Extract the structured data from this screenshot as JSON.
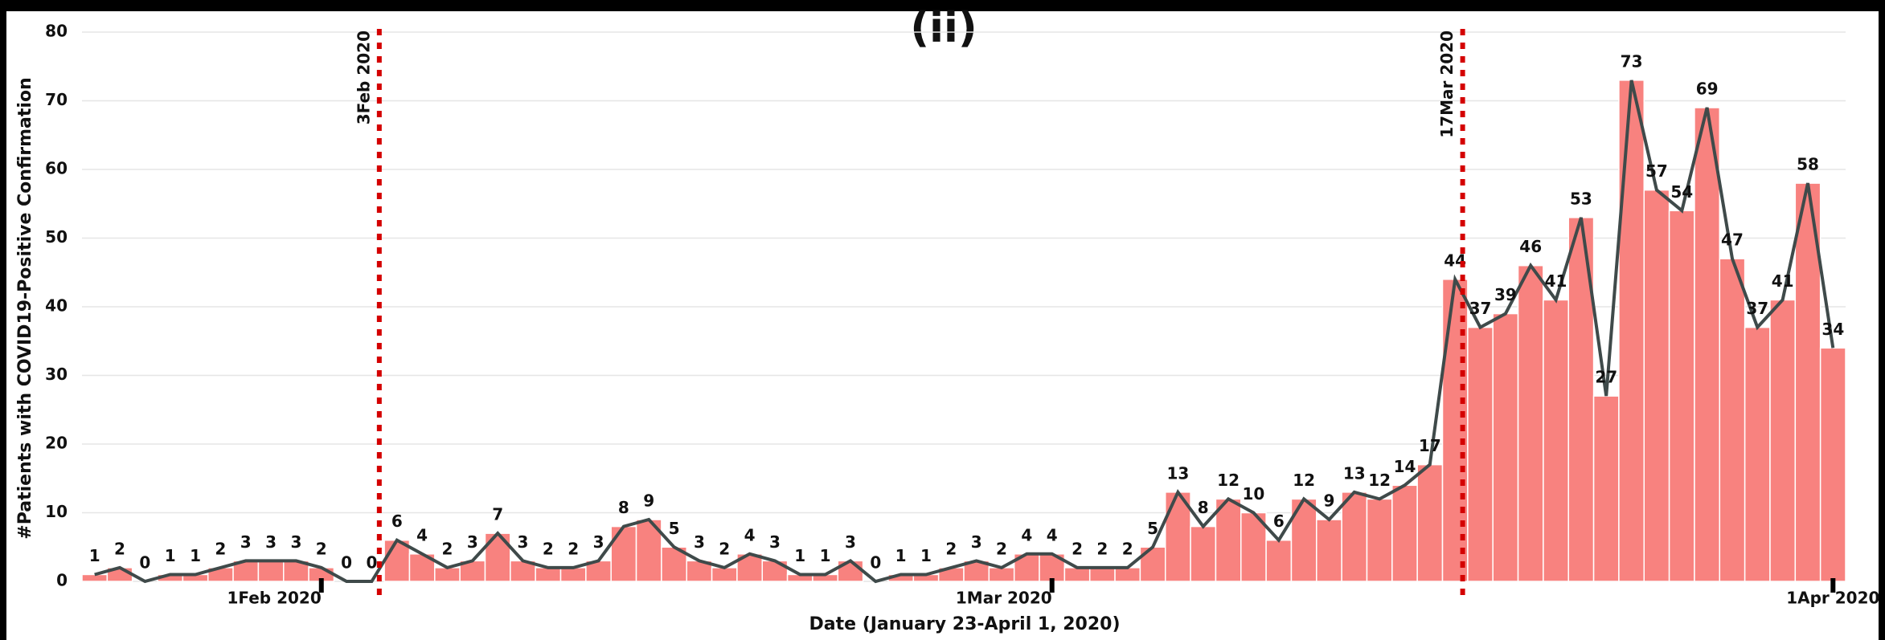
{
  "chart_data": {
    "type": "bar-line",
    "title": "(ii)",
    "x_label": "Date (January 23-April 1, 2020)",
    "y_label": "#Patients with COVID19-Positive Confirmation",
    "x": [
      "2020-01-23",
      "2020-01-24",
      "2020-01-25",
      "2020-01-26",
      "2020-01-27",
      "2020-01-28",
      "2020-01-29",
      "2020-01-30",
      "2020-01-31",
      "2020-02-01",
      "2020-02-02",
      "2020-02-03",
      "2020-02-04",
      "2020-02-05",
      "2020-02-06",
      "2020-02-07",
      "2020-02-08",
      "2020-02-09",
      "2020-02-10",
      "2020-02-11",
      "2020-02-12",
      "2020-02-13",
      "2020-02-14",
      "2020-02-15",
      "2020-02-16",
      "2020-02-17",
      "2020-02-18",
      "2020-02-19",
      "2020-02-20",
      "2020-02-21",
      "2020-02-22",
      "2020-02-23",
      "2020-02-24",
      "2020-02-25",
      "2020-02-26",
      "2020-02-27",
      "2020-02-28",
      "2020-02-29",
      "2020-03-01",
      "2020-03-02",
      "2020-03-03",
      "2020-03-04",
      "2020-03-05",
      "2020-03-06",
      "2020-03-07",
      "2020-03-08",
      "2020-03-09",
      "2020-03-10",
      "2020-03-11",
      "2020-03-12",
      "2020-03-13",
      "2020-03-14",
      "2020-03-15",
      "2020-03-16",
      "2020-03-17",
      "2020-03-18",
      "2020-03-19",
      "2020-03-20",
      "2020-03-21",
      "2020-03-22",
      "2020-03-23",
      "2020-03-24",
      "2020-03-25",
      "2020-03-26",
      "2020-03-27",
      "2020-03-28",
      "2020-03-29",
      "2020-03-30",
      "2020-03-31",
      "2020-04-01"
    ],
    "values": [
      1,
      2,
      0,
      1,
      1,
      2,
      3,
      3,
      3,
      2,
      0,
      0,
      6,
      4,
      2,
      3,
      7,
      3,
      2,
      2,
      3,
      8,
      9,
      5,
      3,
      2,
      4,
      3,
      1,
      1,
      3,
      0,
      1,
      1,
      2,
      3,
      2,
      4,
      4,
      2,
      2,
      2,
      5,
      13,
      8,
      12,
      10,
      6,
      12,
      9,
      13,
      12,
      14,
      17,
      44,
      37,
      39,
      46,
      41,
      53,
      27,
      73,
      57,
      54,
      69,
      47,
      37,
      41,
      58,
      34
    ],
    "bar_color": "#f8827f",
    "line_color": "#3f4a4a",
    "ylim": [
      0,
      80
    ],
    "yticks": [
      0,
      10,
      20,
      30,
      40,
      50,
      60,
      70,
      80
    ],
    "xticks": [
      {
        "value": "2020-02-01",
        "label": "1Feb 2020"
      },
      {
        "value": "2020-03-01",
        "label": "1Mar 2020"
      },
      {
        "value": "2020-04-01",
        "label": "1Apr 2020"
      }
    ],
    "vlines": [
      {
        "x": "2020-02-03",
        "label": "3Feb 2020",
        "color": "#d40000"
      },
      {
        "x": "2020-03-17",
        "label": "17Mar 2020",
        "color": "#d40000"
      }
    ],
    "grid": true
  }
}
